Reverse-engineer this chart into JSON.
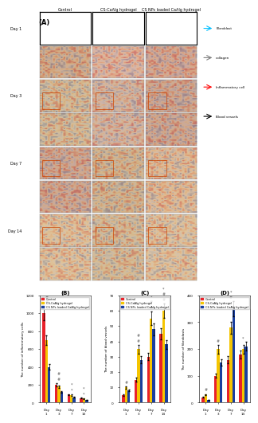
{
  "panel_label": "(A)",
  "col_labels": [
    "Control",
    "CS-CaAlg hydrogel",
    "CS NPs loaded CaAlg hydrogel"
  ],
  "row_labels": [
    "Day 1",
    "Day 3",
    "Day 7",
    "Day 14"
  ],
  "legend_items": [
    "Fibroblast",
    "collagen",
    "Inflammatory cell",
    "Blood vessels"
  ],
  "legend_colors": [
    "#00bfff",
    "#808080",
    "#ff0000",
    "#000000"
  ],
  "chart_B": {
    "title": "(B)",
    "ylabel": "The number of inflammatory cells",
    "xlabel_days": [
      "Day 1",
      "Day 3",
      "Day 7",
      "Day 14"
    ],
    "control": [
      1000,
      200,
      90,
      50
    ],
    "cs_caalg": [
      700,
      180,
      85,
      45
    ],
    "cs_nps": [
      400,
      120,
      60,
      30
    ],
    "ylim": [
      0,
      1200
    ],
    "yticks": [
      0,
      200,
      400,
      600,
      800,
      1000,
      1200
    ],
    "annotations": [
      [
        "#",
        "#"
      ],
      [
        "#",
        "#"
      ],
      [
        "*",
        "*"
      ],
      [
        "*",
        "*"
      ]
    ]
  },
  "chart_C": {
    "title": "(C)",
    "ylabel": "The number of blood vessels",
    "xlabel_days": [
      "Day 1",
      "Day 3",
      "Day 7",
      "Day 14"
    ],
    "control": [
      5,
      15,
      30,
      45
    ],
    "cs_caalg": [
      10,
      35,
      55,
      60
    ],
    "cs_nps": [
      8,
      28,
      48,
      38
    ],
    "ylim": [
      0,
      70
    ],
    "yticks": [
      0,
      10,
      20,
      30,
      40,
      50,
      60,
      70
    ],
    "annotations": [
      [
        "#"
      ],
      [
        "#",
        "#"
      ],
      [
        "#",
        "#",
        "*"
      ],
      [
        "#",
        "#",
        "*"
      ]
    ]
  },
  "chart_D": {
    "title": "(D)",
    "ylabel": "The number of fibroblasts",
    "xlabel_days": [
      "Day 1",
      "Day 3",
      "Day 7",
      "Day 14"
    ],
    "control": [
      20,
      100,
      160,
      180
    ],
    "cs_caalg": [
      30,
      200,
      280,
      200
    ],
    "cs_nps": [
      10,
      150,
      350,
      210
    ],
    "ylim": [
      0,
      400
    ],
    "yticks": [
      0,
      100,
      200,
      300,
      400
    ],
    "annotations": [
      [
        "#"
      ],
      [
        "#"
      ],
      [
        "#",
        "*"
      ],
      [
        "*"
      ]
    ]
  },
  "bar_colors": [
    "#e8212a",
    "#f5c500",
    "#1a3f9e"
  ],
  "legend_labels": [
    "Control",
    "CS-CaAlg hydrogel",
    "CS NPs loaded CaAlg hydrogel"
  ],
  "tissue_colors": [
    [
      "#c4967a",
      "#d4a090",
      "#c89080"
    ],
    [
      "#c8a888",
      "#c8a090",
      "#c09080"
    ],
    [
      "#c09080",
      "#c4a080",
      "#d4a888"
    ],
    [
      "#d4b090",
      "#c8a888",
      "#d4b090"
    ]
  ],
  "figure_bg": "#ffffff"
}
